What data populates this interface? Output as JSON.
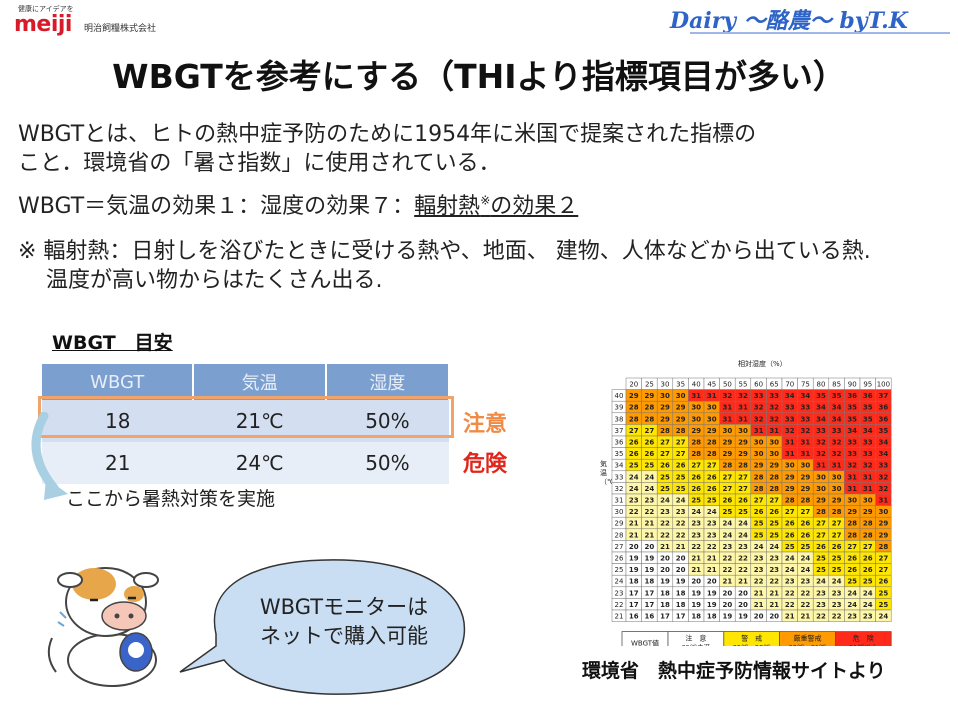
{
  "header": {
    "logo_tagline": "健康にアイデアを",
    "logo_word": "meiji",
    "company": "明治飼糧株式会社",
    "brand": "Dairy ～酪農～ byT.K"
  },
  "title": "WBGTを参考にする（THIより指標項目が多い）",
  "body": {
    "p1_line1": "WBGTとは、ヒトの熱中症予防のために1954年に米国で提案された指標の",
    "p1_line2": "こと．環境省の「暑さ指数」に使用されている．",
    "p2_prefix": "WBGT＝気温の効果１：湿度の効果７：",
    "p2_underlined": "輻射熱",
    "p2_sup": "※",
    "p2_suffix": "の効果２",
    "note_line1": "※ 輻射熱：日射しを浴びたときに受ける熱や、地面、 建物、人体などから出ている熱.",
    "note_line2": "温度が高い物からはたくさん出る."
  },
  "guide": {
    "subtitle": "WBGT　目安",
    "headers": [
      "WBGT",
      "気温",
      "湿度"
    ],
    "rows": [
      {
        "wbgt": "18",
        "temp": "21℃",
        "humidity": "50%",
        "label": "注意"
      },
      {
        "wbgt": "21",
        "temp": "24℃",
        "humidity": "50%",
        "label": "危険"
      }
    ],
    "measure_note": "ここから暑熱対策を実施"
  },
  "bubble": {
    "line1": "WBGTモニターは",
    "line2": "ネットで購入可能"
  },
  "heat_table": {
    "title": "相対湿度（%）",
    "ylabel": "気温（℃）",
    "humidity": [
      20,
      25,
      30,
      35,
      40,
      45,
      50,
      55,
      60,
      65,
      70,
      75,
      80,
      85,
      90,
      95,
      100
    ],
    "temps": [
      40,
      39,
      38,
      37,
      36,
      35,
      34,
      33,
      32,
      31,
      30,
      29,
      28,
      27,
      26,
      25,
      24,
      23,
      22,
      21
    ],
    "row_start": [
      29,
      28,
      28,
      27,
      26,
      26,
      25,
      24,
      24,
      23,
      22,
      21,
      21,
      20,
      19,
      19,
      18,
      17,
      17,
      16
    ],
    "colors": {
      "safe": "#ffffff",
      "caution": "#fff7a8",
      "warning": "#ffe600",
      "severe": "#ff9a00",
      "danger": "#ff2a1a"
    },
    "legend_head": "WBGT値",
    "legend": [
      {
        "label": "注　意",
        "range": "25℃未満"
      },
      {
        "label": "警　戒",
        "range": "25℃～28℃"
      },
      {
        "label": "厳重警戒",
        "range": "28℃～31℃"
      },
      {
        "label": "危　険",
        "range": "31℃以上"
      }
    ]
  },
  "source": "環境省　熱中症予防情報サイトより"
}
